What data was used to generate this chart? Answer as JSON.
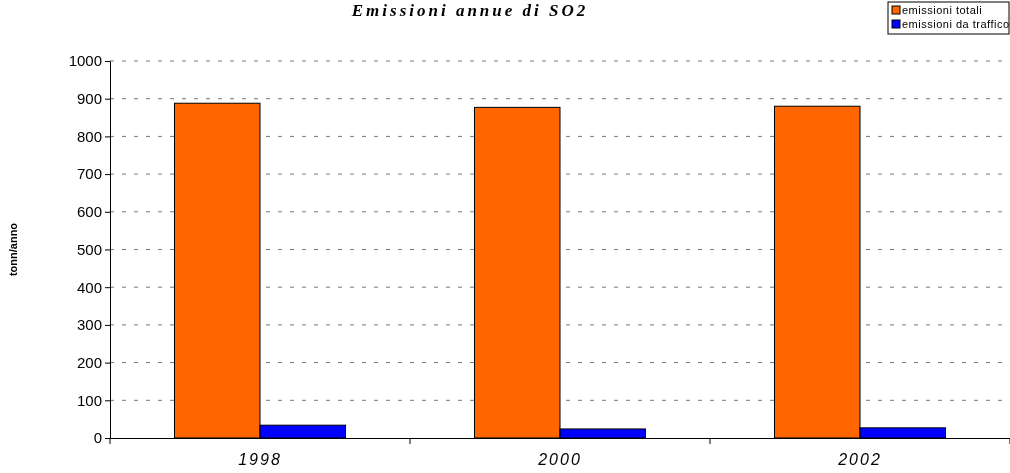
{
  "chart_data": {
    "type": "bar",
    "title": "Emissioni annue di SO2",
    "ylabel": "tonn/anno",
    "categories": [
      "1998",
      "2000",
      "2002"
    ],
    "series": [
      {
        "name": "emissioni totali",
        "color": "#ff6600",
        "values": [
          888,
          877,
          880
        ]
      },
      {
        "name": "emissioni da traffico",
        "color": "#0000ff",
        "values": [
          34,
          24,
          27
        ]
      }
    ],
    "ylim": [
      0,
      1000
    ],
    "yticks": [
      0,
      100,
      200,
      300,
      400,
      500,
      600,
      700,
      800,
      900,
      1000
    ],
    "grid": "y",
    "legend": "top right"
  }
}
